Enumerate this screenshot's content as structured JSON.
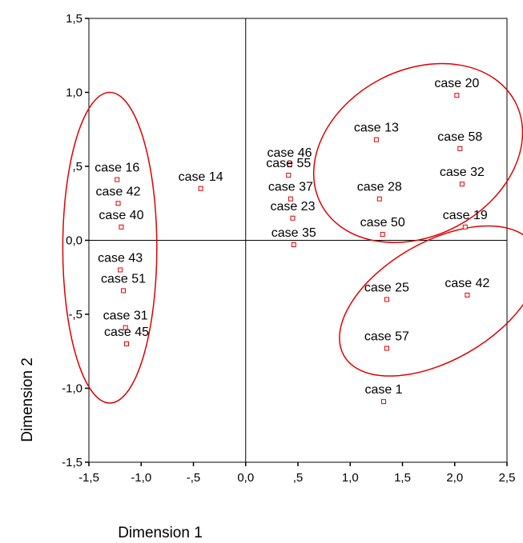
{
  "chart_data": {
    "type": "scatter",
    "xlabel": "Dimension 1",
    "ylabel": "Dimension 2",
    "xlim": [
      -1.5,
      2.5
    ],
    "ylim": [
      -1.5,
      1.5
    ],
    "x_ticks": [
      -1.5,
      -1.0,
      -0.5,
      0.0,
      0.5,
      1.0,
      1.5,
      2.0,
      2.5
    ],
    "x_tick_labels": [
      "-1,5",
      "-1,0",
      "-,5",
      "0,0",
      ",5",
      "1,0",
      "1,5",
      "2,0",
      "2,5"
    ],
    "y_ticks": [
      -1.5,
      -1.0,
      -0.5,
      0.0,
      0.5,
      1.0,
      1.5
    ],
    "y_tick_labels": [
      "-1,5",
      "-1,0",
      "-,5",
      "0,0",
      ",5",
      "1,0",
      "1,5"
    ],
    "reference_lines": {
      "x": 0,
      "y": 0
    },
    "marker_color": "#e00000",
    "ellipse_color": "#e00000",
    "points": [
      {
        "label": "case 20",
        "x": 2.02,
        "y": 0.98
      },
      {
        "label": "case 13",
        "x": 1.25,
        "y": 0.68
      },
      {
        "label": "case 58",
        "x": 2.05,
        "y": 0.62
      },
      {
        "label": "case 46",
        "x": 0.42,
        "y": 0.51
      },
      {
        "label": "case 55",
        "x": 0.41,
        "y": 0.44
      },
      {
        "label": "case 32",
        "x": 2.07,
        "y": 0.38
      },
      {
        "label": "case 28",
        "x": 1.28,
        "y": 0.28
      },
      {
        "label": "case 37",
        "x": 0.43,
        "y": 0.28
      },
      {
        "label": "case 23",
        "x": 0.45,
        "y": 0.15
      },
      {
        "label": "case 50",
        "x": 1.31,
        "y": 0.04
      },
      {
        "label": "case 19",
        "x": 2.1,
        "y": 0.09
      },
      {
        "label": "case 35",
        "x": 0.46,
        "y": -0.03
      },
      {
        "label": "case 16",
        "x": -1.23,
        "y": 0.41
      },
      {
        "label": "case 14",
        "x": -0.43,
        "y": 0.35
      },
      {
        "label": "case 42",
        "x": -1.22,
        "y": 0.25
      },
      {
        "label": "case 40",
        "x": -1.19,
        "y": 0.09
      },
      {
        "label": "case 43",
        "x": -1.2,
        "y": -0.2
      },
      {
        "label": "case 51",
        "x": -1.17,
        "y": -0.34
      },
      {
        "label": "case 31",
        "x": -1.15,
        "y": -0.59
      },
      {
        "label": "case 45",
        "x": -1.14,
        "y": -0.7
      },
      {
        "label": "case 25",
        "x": 1.35,
        "y": -0.4
      },
      {
        "label": "case 42",
        "x": 2.12,
        "y": -0.37
      },
      {
        "label": "case 57",
        "x": 1.35,
        "y": -0.73
      },
      {
        "label": "case 1",
        "x": 1.32,
        "y": -1.09
      }
    ],
    "ellipses": [
      {
        "cx": 1.65,
        "cy": 0.59,
        "rx": 1.05,
        "ry": 0.56,
        "angle_deg": -28
      },
      {
        "cx": 1.85,
        "cy": -0.41,
        "rx": 1.05,
        "ry": 0.4,
        "angle_deg": -30
      },
      {
        "cx": -1.3,
        "cy": -0.05,
        "rx": 0.45,
        "ry": 1.05,
        "angle_deg": 0
      }
    ]
  }
}
